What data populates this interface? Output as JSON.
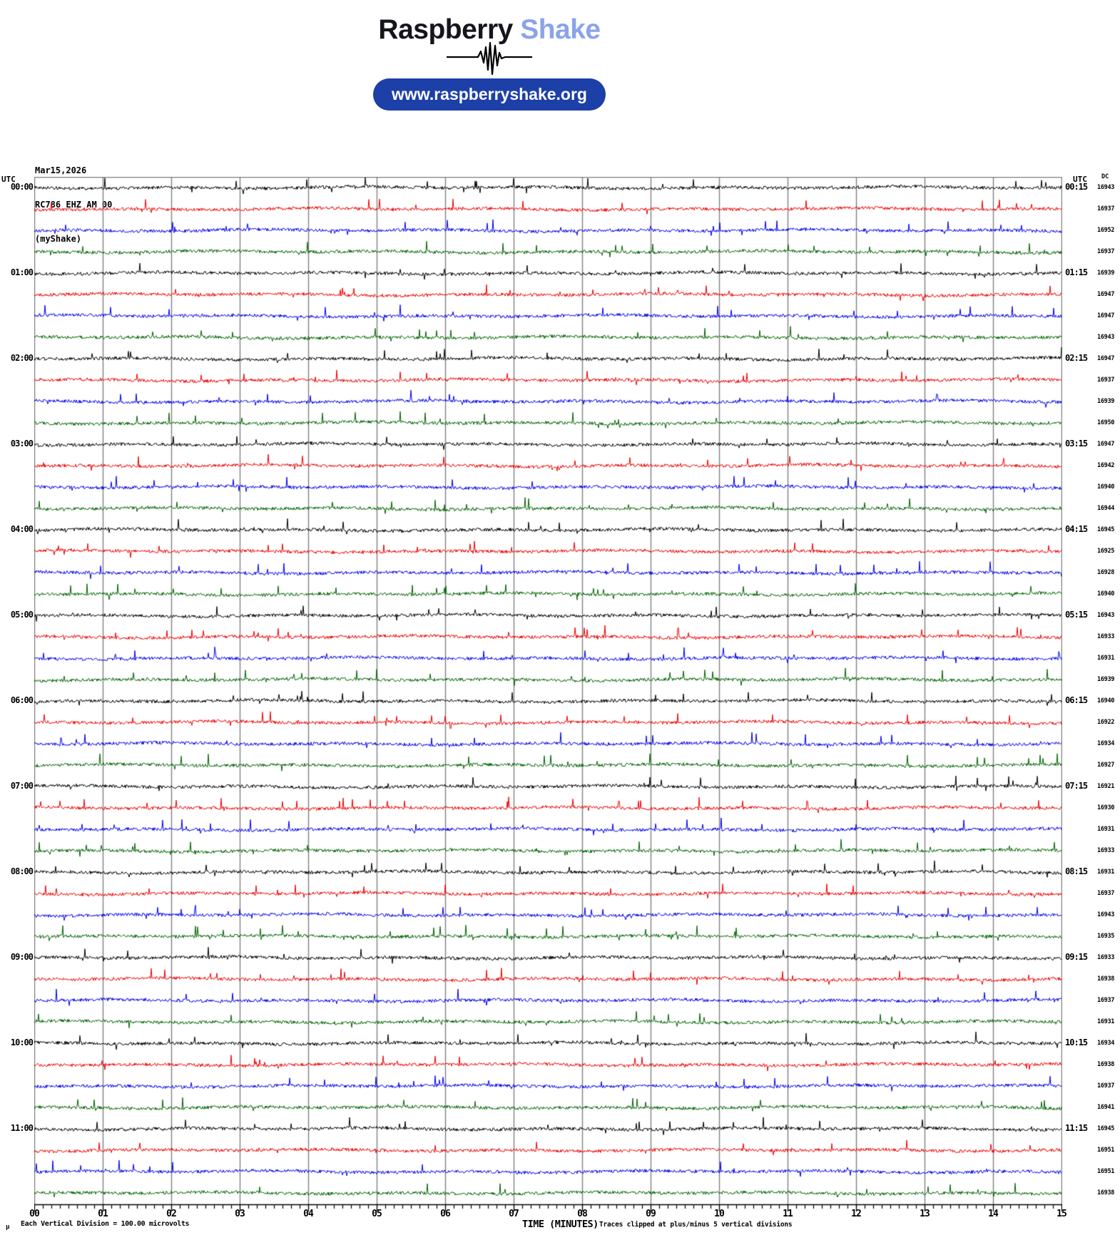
{
  "header": {
    "brand_primary": "Raspberry",
    "brand_secondary": "Shake",
    "url_label": "www.raspberryshake.org",
    "colors": {
      "brand_primary": "#15151d",
      "brand_secondary": "#8aa4ea",
      "pill_bg": "#1d3fa8",
      "pill_text": "#ffffff"
    }
  },
  "station": {
    "date": "Mar15,2026",
    "id": "RC786 EHZ AM 00",
    "network": "(myShake)"
  },
  "axes": {
    "utc_left": "UTC",
    "utc_right": "UTC",
    "dc_header": "DC",
    "time_axis_label": "TIME (MINUTES)"
  },
  "footer": {
    "micro_glyph": "µ",
    "scale_note": "Each Vertical Division =  100.00 microvolts",
    "clip_note": "Traces clipped at plus/minus 5 vertical divisions"
  },
  "chart_data": {
    "type": "line",
    "title": "RC786 EHZ AM 00 helicorder (myShake) Mar15,2026",
    "xlabel": "TIME (MINUTES)",
    "x_range": [
      0,
      15
    ],
    "x_tick_labels": [
      "00",
      "01",
      "02",
      "03",
      "04",
      "05",
      "06",
      "07",
      "08",
      "09",
      "10",
      "11",
      "12",
      "13",
      "14",
      "15"
    ],
    "minutes_per_row": 15,
    "minor_ticks_per_minute": 8,
    "grid_color": "#808080",
    "axis_color": "#000000",
    "trace_color_cycle": [
      "#000000",
      "#ee0000",
      "#0000ee",
      "#006400"
    ],
    "scale_note_value_microvolts": 100.0,
    "clip_divisions": 5,
    "rows": [
      {
        "left": "00:00",
        "right": "00:15",
        "dc": 16943
      },
      {
        "left": "",
        "right": "",
        "dc": 16937
      },
      {
        "left": "",
        "right": "",
        "dc": 16952
      },
      {
        "left": "",
        "right": "",
        "dc": 16937
      },
      {
        "left": "01:00",
        "right": "01:15",
        "dc": 16939
      },
      {
        "left": "",
        "right": "",
        "dc": 16947
      },
      {
        "left": "",
        "right": "",
        "dc": 16947
      },
      {
        "left": "",
        "right": "",
        "dc": 16943
      },
      {
        "left": "02:00",
        "right": "02:15",
        "dc": 16947
      },
      {
        "left": "",
        "right": "",
        "dc": 16937
      },
      {
        "left": "",
        "right": "",
        "dc": 16939
      },
      {
        "left": "",
        "right": "",
        "dc": 16950
      },
      {
        "left": "03:00",
        "right": "03:15",
        "dc": 16947
      },
      {
        "left": "",
        "right": "",
        "dc": 16942
      },
      {
        "left": "",
        "right": "",
        "dc": 16940
      },
      {
        "left": "",
        "right": "",
        "dc": 16944
      },
      {
        "left": "04:00",
        "right": "04:15",
        "dc": 16945
      },
      {
        "left": "",
        "right": "",
        "dc": 16925
      },
      {
        "left": "",
        "right": "",
        "dc": 16928
      },
      {
        "left": "",
        "right": "",
        "dc": 16940
      },
      {
        "left": "05:00",
        "right": "05:15",
        "dc": 16943
      },
      {
        "left": "",
        "right": "",
        "dc": 16933
      },
      {
        "left": "",
        "right": "",
        "dc": 16931
      },
      {
        "left": "",
        "right": "",
        "dc": 16939
      },
      {
        "left": "06:00",
        "right": "06:15",
        "dc": 16940
      },
      {
        "left": "",
        "right": "",
        "dc": 16922
      },
      {
        "left": "",
        "right": "",
        "dc": 16934
      },
      {
        "left": "",
        "right": "",
        "dc": 16927
      },
      {
        "left": "07:00",
        "right": "07:15",
        "dc": 16921
      },
      {
        "left": "",
        "right": "",
        "dc": 16930
      },
      {
        "left": "",
        "right": "",
        "dc": 16931
      },
      {
        "left": "",
        "right": "",
        "dc": 16933
      },
      {
        "left": "08:00",
        "right": "08:15",
        "dc": 16931
      },
      {
        "left": "",
        "right": "",
        "dc": 16937
      },
      {
        "left": "",
        "right": "",
        "dc": 16943
      },
      {
        "left": "",
        "right": "",
        "dc": 16935
      },
      {
        "left": "09:00",
        "right": "09:15",
        "dc": 16933
      },
      {
        "left": "",
        "right": "",
        "dc": 16938
      },
      {
        "left": "",
        "right": "",
        "dc": 16937
      },
      {
        "left": "",
        "right": "",
        "dc": 16931
      },
      {
        "left": "10:00",
        "right": "10:15",
        "dc": 16934
      },
      {
        "left": "",
        "right": "",
        "dc": 16938
      },
      {
        "left": "",
        "right": "",
        "dc": 16937
      },
      {
        "left": "",
        "right": "",
        "dc": 16941
      },
      {
        "left": "11:00",
        "right": "11:15",
        "dc": 16945
      },
      {
        "left": "",
        "right": "",
        "dc": 16951
      },
      {
        "left": "",
        "right": "",
        "dc": 16951
      },
      {
        "left": "",
        "right": "",
        "dc": 16938
      }
    ]
  }
}
